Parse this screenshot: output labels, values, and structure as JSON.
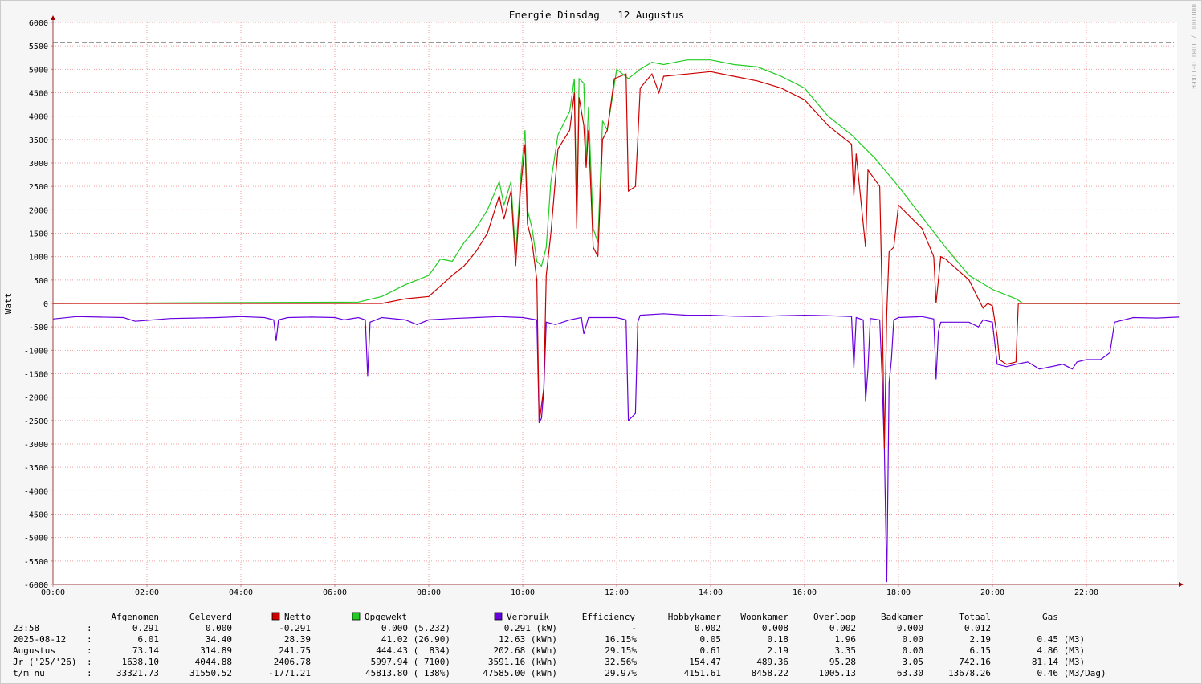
{
  "chart_data": {
    "type": "line",
    "title": "Energie Dinsdag   12 Augustus",
    "y_label": "Watt",
    "watermark": "RRDTOOL / TOBI OETIKER",
    "xlim": [
      0,
      24
    ],
    "xticks": [
      {
        "value": 0,
        "label": "00:00"
      },
      {
        "value": 2,
        "label": "02:00"
      },
      {
        "value": 4,
        "label": "04:00"
      },
      {
        "value": 6,
        "label": "06:00"
      },
      {
        "value": 8,
        "label": "08:00"
      },
      {
        "value": 10,
        "label": "10:00"
      },
      {
        "value": 12,
        "label": "12:00"
      },
      {
        "value": 14,
        "label": "14:00"
      },
      {
        "value": 16,
        "label": "16:00"
      },
      {
        "value": 18,
        "label": "18:00"
      },
      {
        "value": 20,
        "label": "20:00"
      },
      {
        "value": 22,
        "label": "22:00"
      }
    ],
    "ylim": [
      -6000,
      6000
    ],
    "yticks": [
      -6000,
      -5500,
      -5000,
      -4500,
      -4000,
      -3500,
      -3000,
      -2500,
      -2000,
      -1500,
      -1000,
      -500,
      0,
      500,
      1000,
      1500,
      2000,
      2500,
      3000,
      3500,
      4000,
      4500,
      5000,
      5500,
      6000
    ],
    "grid": true,
    "reference_line": {
      "value": 5580,
      "color": "#999999"
    },
    "series": [
      {
        "name": "Netto",
        "color": "#cc0000",
        "x": [
          0,
          7,
          7.5,
          8,
          8.5,
          8.75,
          9,
          9.25,
          9.5,
          9.6,
          9.75,
          9.85,
          9.95,
          10.05,
          10.1,
          10.2,
          10.3,
          10.35,
          10.45,
          10.5,
          10.6,
          10.75,
          11,
          11.1,
          11.15,
          11.2,
          11.3,
          11.35,
          11.4,
          11.5,
          11.6,
          11.7,
          11.8,
          11.95,
          12.2,
          12.25,
          12.4,
          12.45,
          12.5,
          12.75,
          12.9,
          13,
          13.5,
          14,
          14.5,
          15,
          15.5,
          16,
          16.5,
          17,
          17.05,
          17.1,
          17.3,
          17.35,
          17.6,
          17.65,
          17.7,
          17.75,
          17.8,
          17.9,
          18,
          18.5,
          18.75,
          18.8,
          18.9,
          19,
          19.5,
          19.8,
          19.9,
          20,
          20.1,
          20.15,
          20.3,
          20.5,
          20.55,
          24
        ],
        "values": [
          0,
          0,
          100,
          150,
          600,
          800,
          1100,
          1500,
          2300,
          1800,
          2400,
          800,
          2400,
          3400,
          1700,
          1300,
          500,
          -2550,
          -1800,
          600,
          1500,
          3300,
          3700,
          4500,
          1600,
          4400,
          3800,
          2900,
          3700,
          1200,
          1000,
          3500,
          3700,
          4800,
          4900,
          2400,
          2500,
          3500,
          4600,
          4900,
          4500,
          4850,
          4900,
          4950,
          4850,
          4750,
          4600,
          4350,
          3800,
          3400,
          2300,
          3200,
          1200,
          2850,
          2500,
          200,
          -3100,
          -200,
          1100,
          1200,
          2100,
          1600,
          1000,
          0,
          1000,
          950,
          500,
          -100,
          0,
          -50,
          -700,
          -1200,
          -1300,
          -1250,
          0,
          0
        ]
      },
      {
        "name": "Opgewekt",
        "color": "#22cc22",
        "x": [
          0,
          6.5,
          7,
          7.5,
          8,
          8.25,
          8.5,
          8.75,
          9,
          9.25,
          9.5,
          9.6,
          9.75,
          9.85,
          9.95,
          10.05,
          10.1,
          10.2,
          10.3,
          10.4,
          10.5,
          10.6,
          10.75,
          11,
          11.1,
          11.15,
          11.2,
          11.3,
          11.35,
          11.4,
          11.5,
          11.6,
          11.7,
          11.8,
          12,
          12.25,
          12.5,
          12.75,
          13,
          13.5,
          14,
          14.5,
          15,
          15.5,
          16,
          16.25,
          16.5,
          17,
          17.5,
          18,
          18.5,
          19,
          19.5,
          20,
          20.5,
          20.65,
          24
        ],
        "values": [
          0,
          30,
          150,
          400,
          600,
          950,
          900,
          1300,
          1600,
          2000,
          2600,
          2100,
          2600,
          1000,
          2600,
          3700,
          2000,
          1600,
          900,
          800,
          1200,
          2600,
          3600,
          4100,
          4800,
          1800,
          4800,
          4700,
          3000,
          4200,
          1600,
          1300,
          3900,
          3700,
          5000,
          4800,
          5000,
          5150,
          5100,
          5200,
          5200,
          5100,
          5050,
          4850,
          4600,
          4300,
          4000,
          3600,
          3100,
          2500,
          1850,
          1200,
          600,
          300,
          100,
          0,
          0
        ]
      },
      {
        "name": "Verbruik",
        "color": "#6a00e0",
        "x": [
          0,
          0.5,
          1,
          1.5,
          1.75,
          2,
          2.5,
          3,
          3.5,
          4,
          4.5,
          4.7,
          4.75,
          4.8,
          5,
          5.5,
          6,
          6.2,
          6.5,
          6.65,
          6.7,
          6.75,
          7,
          7.5,
          7.75,
          8,
          8.5,
          9,
          9.5,
          10,
          10.3,
          10.35,
          10.4,
          10.45,
          10.5,
          10.7,
          11,
          11.25,
          11.3,
          11.4,
          12,
          12.2,
          12.25,
          12.4,
          12.45,
          12.5,
          13,
          13.5,
          14,
          14.5,
          15,
          15.5,
          16,
          16.5,
          17,
          17.05,
          17.1,
          17.25,
          17.3,
          17.35,
          17.4,
          17.6,
          17.65,
          17.7,
          17.75,
          17.8,
          17.85,
          17.9,
          18,
          18.5,
          18.75,
          18.8,
          18.85,
          18.9,
          19.5,
          19.7,
          19.8,
          20,
          20.1,
          20.3,
          20.5,
          20.75,
          21,
          21.5,
          21.7,
          21.8,
          22,
          22.3,
          22.5,
          22.6,
          23,
          23.5,
          23.97
        ],
        "values": [
          -330,
          -280,
          -290,
          -300,
          -380,
          -360,
          -320,
          -310,
          -300,
          -280,
          -300,
          -350,
          -800,
          -350,
          -300,
          -290,
          -300,
          -350,
          -300,
          -350,
          -1550,
          -400,
          -300,
          -350,
          -450,
          -350,
          -320,
          -300,
          -280,
          -300,
          -350,
          -2550,
          -2450,
          -1850,
          -400,
          -450,
          -350,
          -300,
          -650,
          -300,
          -300,
          -350,
          -2500,
          -2350,
          -400,
          -250,
          -220,
          -250,
          -250,
          -270,
          -280,
          -260,
          -250,
          -260,
          -280,
          -1380,
          -300,
          -350,
          -2100,
          -1400,
          -320,
          -350,
          -1550,
          -3100,
          -5950,
          -1700,
          -1200,
          -350,
          -300,
          -280,
          -330,
          -1620,
          -600,
          -400,
          -400,
          -500,
          -350,
          -400,
          -1300,
          -1350,
          -1300,
          -1250,
          -1400,
          -1300,
          -1400,
          -1250,
          -1200,
          -1200,
          -1050,
          -400,
          -300,
          -310,
          -290
        ]
      }
    ]
  },
  "table": {
    "headers": [
      "Afgenomen",
      "Geleverd",
      "Efficiency",
      "Hobbykamer",
      "Woonkamer",
      "Overloop",
      "Badkamer",
      "Totaal",
      "Gas"
    ],
    "separator": ":",
    "rows": [
      {
        "label": "23:58",
        "cells": [
          "0.291",
          "0.000",
          "-0.291",
          "0.000 (5.232)",
          "0.291 (kW)",
          "-",
          "0.002",
          "0.008",
          "0.002",
          "0.000",
          "0.012"
        ]
      },
      {
        "label": "2025-08-12",
        "cells": [
          "6.01",
          "34.40",
          "28.39",
          "41.02 (26.90)",
          "12.63 (kWh)",
          "16.15%",
          "0.05",
          "0.18",
          "1.96",
          "0.00",
          "2.19",
          "0.45 (M3)"
        ]
      },
      {
        "label": "Augustus",
        "cells": [
          "73.14",
          "314.89",
          "241.75",
          "444.43 (  834)",
          "202.68 (kWh)",
          "29.15%",
          "0.61",
          "2.19",
          "3.35",
          "0.00",
          "6.15",
          "4.86 (M3)"
        ]
      },
      {
        "label": "Jr ('25/'26)",
        "cells": [
          "1638.10",
          "4044.88",
          "2406.78",
          "5997.94 ( 7100)",
          "3591.16 (kWh)",
          "32.56%",
          "154.47",
          "489.36",
          "95.28",
          "3.05",
          "742.16",
          "81.14 (M3)"
        ]
      },
      {
        "label": "t/m nu",
        "cells": [
          "33321.73",
          "31550.52",
          "-1771.21",
          "45813.80 ( 138%)",
          "47585.00 (kWh)",
          "29.97%",
          "4151.61",
          "8458.22",
          "1005.13",
          "63.30",
          "13678.26",
          "0.46 (M3/Dag)"
        ]
      }
    ]
  }
}
